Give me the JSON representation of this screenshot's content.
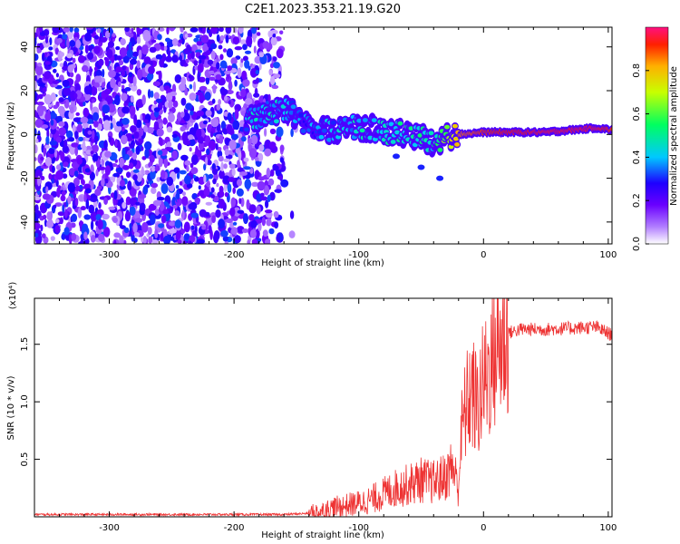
{
  "title": "C2E1.2023.353.21.19.G20",
  "chart_data": [
    {
      "type": "heatmap",
      "title": "C2E1.2023.353.21.19.G20",
      "xlabel": "Height of straight line (km)",
      "ylabel": "Frequency (Hz)",
      "xlim": [
        -360,
        103
      ],
      "ylim": [
        -50,
        49
      ],
      "x_ticks": [
        -300,
        -200,
        -100,
        0,
        100
      ],
      "y_ticks": [
        -40,
        -20,
        0,
        20,
        40
      ],
      "colorbar": {
        "label": "Normalized spectral amplitude",
        "range": [
          0,
          1
        ],
        "ticks": [
          0.0,
          0.2,
          0.4,
          0.6,
          0.8
        ],
        "colors": [
          "#ffffff",
          "#7a00ff",
          "#0000ff",
          "#00ffff",
          "#00ff00",
          "#ffff00",
          "#ff0000",
          "#ff0080"
        ]
      },
      "ridge": [
        {
          "x": -190,
          "y": 7,
          "amp": 0.45
        },
        {
          "x": -170,
          "y": 10,
          "amp": 0.5
        },
        {
          "x": -155,
          "y": 11,
          "amp": 0.45
        },
        {
          "x": -140,
          "y": 4,
          "amp": 0.4
        },
        {
          "x": -120,
          "y": 2,
          "amp": 0.45
        },
        {
          "x": -100,
          "y": 4,
          "amp": 0.5
        },
        {
          "x": -80,
          "y": 1,
          "amp": 0.5
        },
        {
          "x": -60,
          "y": 0,
          "amp": 0.55
        },
        {
          "x": -40,
          "y": -3,
          "amp": 0.55
        },
        {
          "x": -20,
          "y": 0,
          "amp": 0.85
        },
        {
          "x": 0,
          "y": 1,
          "amp": 0.9
        },
        {
          "x": 50,
          "y": 1,
          "amp": 0.95
        },
        {
          "x": 90,
          "y": 3,
          "amp": 0.95
        },
        {
          "x": 103,
          "y": 2,
          "amp": 0.9
        }
      ],
      "secondary_branch": [
        {
          "x": -70,
          "y": -10
        },
        {
          "x": -50,
          "y": -15
        },
        {
          "x": -35,
          "y": -20
        }
      ]
    },
    {
      "type": "line",
      "xlabel": "Height of straight line (km)",
      "ylabel": "SNR (10 * v/v)",
      "y_multiplier": "(x10⁴)",
      "xlim": [
        -360,
        103
      ],
      "ylim": [
        0,
        1.9
      ],
      "x_ticks": [
        -300,
        -200,
        -100,
        0,
        100
      ],
      "y_ticks": [
        0.5,
        1.0,
        1.5
      ],
      "series": [
        {
          "color": "#ee3333",
          "x": [
            -360,
            -300,
            -250,
            -200,
            -160,
            -140,
            -130,
            -120,
            -110,
            -100,
            -90,
            -80,
            -70,
            -60,
            -50,
            -40,
            -30,
            -25,
            -20,
            -18,
            -15,
            -10,
            -5,
            0,
            5,
            10,
            20,
            30,
            50,
            70,
            90,
            103
          ],
          "y": [
            0.02,
            0.02,
            0.02,
            0.02,
            0.02,
            0.03,
            0.05,
            0.08,
            0.1,
            0.12,
            0.15,
            0.2,
            0.25,
            0.28,
            0.32,
            0.3,
            0.35,
            0.45,
            0.25,
            0.7,
            0.9,
            1.1,
            0.95,
            1.15,
            1.3,
            1.45,
            1.6,
            1.63,
            1.63,
            1.64,
            1.65,
            1.58
          ]
        }
      ]
    }
  ]
}
